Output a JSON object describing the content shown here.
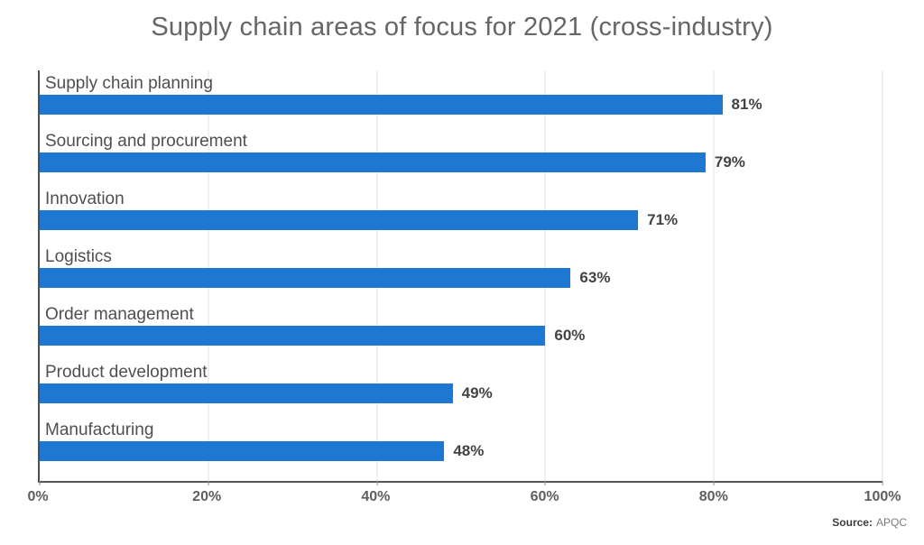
{
  "title": "Supply chain areas of focus for 2021 (cross-industry)",
  "source": {
    "label": "Source:",
    "value": "APQC"
  },
  "chart_data": {
    "type": "bar",
    "orientation": "horizontal",
    "title": "Supply chain areas of focus for 2021 (cross-industry)",
    "categories": [
      "Supply chain planning",
      "Sourcing and procurement",
      "Innovation",
      "Logistics",
      "Order management",
      "Product development",
      "Manufacturing"
    ],
    "values": [
      81,
      79,
      71,
      63,
      60,
      49,
      48
    ],
    "value_labels": [
      "81%",
      "79%",
      "71%",
      "63%",
      "60%",
      "49%",
      "48%"
    ],
    "xlabel": "",
    "ylabel": "",
    "xlim": [
      0,
      100
    ],
    "x_tick_values": [
      0,
      20,
      40,
      60,
      80,
      100
    ],
    "x_tick_labels": [
      "0%",
      "20%",
      "40%",
      "60%",
      "80%",
      "100%"
    ],
    "grid": "vertical-on",
    "legend": "none",
    "colors": {
      "bar": "#1e78d2",
      "gridline": "#e2e2e2",
      "axis_line": "#4f4f4f",
      "title_text": "#666666",
      "category_text": "#4f4f4f",
      "value_text": "#434343",
      "tick_text": "#5f5f5f",
      "source_text": "#7a7a7a",
      "background": "#ffffff"
    }
  }
}
